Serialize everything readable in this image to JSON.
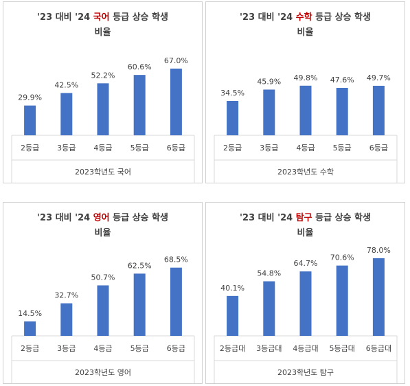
{
  "chart_data": [
    {
      "type": "bar",
      "title_line1": "'23 대비 '24 ",
      "title_highlight": "국어",
      "title_line1_end": " 등급 상승 학생",
      "title_line2": "비율",
      "categories": [
        "2등급",
        "3등급",
        "4등급",
        "5등급",
        "6등급"
      ],
      "values": [
        29.9,
        42.5,
        52.2,
        60.6,
        67.0
      ],
      "data_labels": [
        "29.9%",
        "42.5%",
        "52.2%",
        "60.6%",
        "67.0%"
      ],
      "xlabel": "2023학년도 국어",
      "ylabel": "",
      "ylim": [
        0,
        100
      ],
      "grid": false,
      "legend": "none"
    },
    {
      "type": "bar",
      "title_line1": "'23 대비 '24 ",
      "title_highlight": "수학",
      "title_line1_end": " 등급 상승 학생",
      "title_line2": "비율",
      "categories": [
        "2등급",
        "3등급",
        "4등급",
        "5등급",
        "6등급"
      ],
      "values": [
        34.5,
        45.9,
        49.8,
        47.6,
        49.7
      ],
      "data_labels": [
        "34.5%",
        "45.9%",
        "49.8%",
        "47.6%",
        "49.7%"
      ],
      "xlabel": "2023학년도 수학",
      "ylabel": "",
      "ylim": [
        0,
        100
      ],
      "grid": false,
      "legend": "none"
    },
    {
      "type": "bar",
      "title_line1": "'23 대비 '24 ",
      "title_highlight": "영어",
      "title_line1_end": " 등급 상승 학생",
      "title_line2": "비율",
      "categories": [
        "2등급",
        "3등급",
        "4등급",
        "5등급",
        "6등급"
      ],
      "values": [
        14.5,
        32.7,
        50.7,
        62.5,
        68.5
      ],
      "data_labels": [
        "14.5%",
        "32.7%",
        "50.7%",
        "62.5%",
        "68.5%"
      ],
      "xlabel": "2023학년도 영어",
      "ylabel": "",
      "ylim": [
        0,
        100
      ],
      "grid": false,
      "legend": "none"
    },
    {
      "type": "bar",
      "title_line1": "'23 대비 '24 ",
      "title_highlight": "탐구",
      "title_line1_end": " 등급 상승 학생",
      "title_line2": "비율",
      "categories": [
        "2등급대",
        "3등급대",
        "4등급대",
        "5등급대",
        "6등급대"
      ],
      "values": [
        40.1,
        54.8,
        64.7,
        70.6,
        78.0
      ],
      "data_labels": [
        "40.1%",
        "54.8%",
        "64.7%",
        "70.6%",
        "78.0%"
      ],
      "xlabel": "2023학년도 탐구",
      "ylabel": "",
      "ylim": [
        0,
        100
      ],
      "grid": false,
      "legend": "none"
    }
  ],
  "colors": {
    "bar": "#4472c4",
    "highlight": "#c00000",
    "text": "#404040",
    "axis_line": "#d9d9d9"
  }
}
